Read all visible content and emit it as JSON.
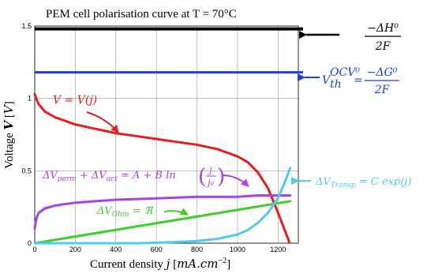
{
  "chart_data": {
    "type": "line",
    "title": "PEM cell polarisation curve at T = 70°C",
    "xlabel": "Current density  j [mA.cm⁻²]",
    "ylabel": "Voltage V [V]",
    "xlim": [
      0,
      1300
    ],
    "ylim": [
      0,
      1.5
    ],
    "xticks": [
      "0",
      "200",
      "400",
      "600",
      "800",
      "1000",
      "1200"
    ],
    "yticks": [
      "0",
      "0.5",
      "1",
      "1.5"
    ],
    "grid": true,
    "series": [
      {
        "name": "V = V(j)",
        "color": "#e81c1c",
        "x": [
          0,
          10,
          20,
          50,
          100,
          200,
          300,
          400,
          500,
          600,
          700,
          800,
          900,
          1000,
          1050,
          1100,
          1150,
          1200,
          1230,
          1255
        ],
        "y": [
          1.03,
          0.99,
          0.96,
          0.91,
          0.87,
          0.82,
          0.79,
          0.76,
          0.74,
          0.72,
          0.7,
          0.68,
          0.65,
          0.6,
          0.56,
          0.49,
          0.38,
          0.21,
          0.1,
          0.01
        ]
      },
      {
        "name": "ΔVperm + ΔVact = A + B ln(j/j0)",
        "color": "#a742e8",
        "x": [
          0,
          5,
          10,
          20,
          50,
          100,
          200,
          300,
          400,
          600,
          800,
          1000,
          1100,
          1200,
          1260
        ],
        "y": [
          0.1,
          0.15,
          0.18,
          0.21,
          0.24,
          0.26,
          0.28,
          0.29,
          0.3,
          0.31,
          0.32,
          0.32,
          0.33,
          0.33,
          0.33
        ]
      },
      {
        "name": "ΔVOhm = ℜ",
        "color": "#3ecf2b",
        "x": [
          0,
          1260
        ],
        "y": [
          0.0,
          0.29
        ]
      },
      {
        "name": "ΔVTransp = C exp(j)",
        "color": "#4ecbf0",
        "x": [
          0,
          500,
          600,
          700,
          800,
          900,
          1000,
          1050,
          1100,
          1150,
          1200,
          1230,
          1260
        ],
        "y": [
          0.0,
          0.0,
          0.003,
          0.008,
          0.015,
          0.03,
          0.06,
          0.09,
          0.14,
          0.21,
          0.31,
          0.41,
          0.52
        ]
      }
    ],
    "hlines": [
      {
        "name": "-ΔH0/2F",
        "y": 1.48,
        "color": "#000000"
      },
      {
        "name": "Vth OCV0 = -ΔG0/2F",
        "y": 1.18,
        "color": "#1f3fe0"
      }
    ]
  },
  "labels": {
    "v_curve": "V = V(j)",
    "dh_num": "−ΔH⁰",
    "dh_den": "2F",
    "vth_lhs": "V",
    "vth_sub": "th",
    "vth_sup": "OCV⁰",
    "vth_eq": "=",
    "dg_num": "−ΔG⁰",
    "dg_den": "2F",
    "act_lhs": "ΔV",
    "act_sub1": "perm",
    "act_plus": " + ΔV",
    "act_sub2": "act",
    "act_rhs": " = A + B ln",
    "act_frac_num": "j",
    "act_frac_den": "j₀",
    "ohm_lhs": "ΔV",
    "ohm_sub": "Ohm",
    "ohm_rhs": " = ℜ",
    "tr_lhs": "ΔV",
    "tr_sub": "Transp",
    "tr_rhs": " = C exp(j)"
  }
}
